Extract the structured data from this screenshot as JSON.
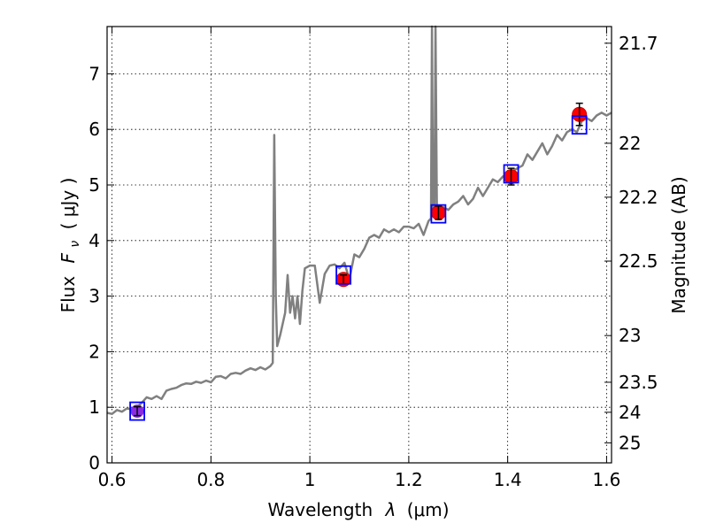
{
  "chart_data": {
    "type": "line",
    "xlabel_text": "Wavelength",
    "xlabel_symbol": "λ",
    "xlabel_unit": "(μm)",
    "ylabel_text": "Flux",
    "ylabel_symbol": "F",
    "ylabel_subscript": "ν",
    "ylabel_unit": "( μJy )",
    "y2label": "Magnitude (AB)",
    "xlim": [
      0.59,
      1.61
    ],
    "ylim": [
      0,
      7.85
    ],
    "grid": true,
    "x_ticks": [
      0.6,
      0.8,
      1.0,
      1.2,
      1.4,
      1.6
    ],
    "x_tick_labels": [
      "0.6",
      "0.8",
      "1",
      "1.2",
      "1.4",
      "1.6"
    ],
    "y_ticks": [
      0,
      1,
      2,
      3,
      4,
      5,
      6,
      7
    ],
    "y_tick_labels": [
      "0",
      "1",
      "2",
      "3",
      "4",
      "5",
      "6",
      "7"
    ],
    "mag_ticks": [
      {
        "label": "21.7",
        "flux": 7.55
      },
      {
        "label": "22",
        "flux": 5.75
      },
      {
        "label": "22.2",
        "flux": 4.78
      },
      {
        "label": "22.5",
        "flux": 3.63
      },
      {
        "label": "23",
        "flux": 2.29
      },
      {
        "label": "23.5",
        "flux": 1.45
      },
      {
        "label": "24",
        "flux": 0.91
      },
      {
        "label": "25",
        "flux": 0.36
      }
    ],
    "model_spectrum": {
      "color": "#808080",
      "points": [
        [
          0.59,
          0.9
        ],
        [
          0.6,
          0.88
        ],
        [
          0.61,
          0.95
        ],
        [
          0.62,
          0.92
        ],
        [
          0.63,
          0.98
        ],
        [
          0.64,
          0.96
        ],
        [
          0.65,
          1.0
        ],
        [
          0.66,
          1.08
        ],
        [
          0.67,
          1.18
        ],
        [
          0.68,
          1.15
        ],
        [
          0.69,
          1.2
        ],
        [
          0.7,
          1.15
        ],
        [
          0.71,
          1.3
        ],
        [
          0.72,
          1.33
        ],
        [
          0.73,
          1.35
        ],
        [
          0.74,
          1.4
        ],
        [
          0.75,
          1.43
        ],
        [
          0.76,
          1.42
        ],
        [
          0.77,
          1.46
        ],
        [
          0.78,
          1.44
        ],
        [
          0.79,
          1.48
        ],
        [
          0.8,
          1.45
        ],
        [
          0.81,
          1.55
        ],
        [
          0.82,
          1.56
        ],
        [
          0.83,
          1.52
        ],
        [
          0.84,
          1.6
        ],
        [
          0.85,
          1.62
        ],
        [
          0.86,
          1.6
        ],
        [
          0.87,
          1.66
        ],
        [
          0.88,
          1.7
        ],
        [
          0.89,
          1.67
        ],
        [
          0.9,
          1.72
        ],
        [
          0.91,
          1.68
        ],
        [
          0.92,
          1.74
        ],
        [
          0.925,
          1.8
        ],
        [
          0.928,
          5.9
        ],
        [
          0.931,
          3.0
        ],
        [
          0.934,
          2.1
        ],
        [
          0.94,
          2.3
        ],
        [
          0.945,
          2.5
        ],
        [
          0.95,
          2.7
        ],
        [
          0.955,
          3.38
        ],
        [
          0.96,
          2.7
        ],
        [
          0.965,
          3.0
        ],
        [
          0.97,
          2.6
        ],
        [
          0.975,
          3.0
        ],
        [
          0.98,
          2.5
        ],
        [
          0.985,
          3.1
        ],
        [
          0.99,
          3.5
        ],
        [
          1.0,
          3.55
        ],
        [
          1.01,
          3.55
        ],
        [
          1.02,
          2.88
        ],
        [
          1.03,
          3.4
        ],
        [
          1.04,
          3.55
        ],
        [
          1.05,
          3.57
        ],
        [
          1.06,
          3.5
        ],
        [
          1.07,
          3.6
        ],
        [
          1.08,
          3.3
        ],
        [
          1.09,
          3.75
        ],
        [
          1.1,
          3.7
        ],
        [
          1.11,
          3.85
        ],
        [
          1.12,
          4.05
        ],
        [
          1.13,
          4.1
        ],
        [
          1.14,
          4.05
        ],
        [
          1.15,
          4.2
        ],
        [
          1.16,
          4.15
        ],
        [
          1.17,
          4.2
        ],
        [
          1.18,
          4.15
        ],
        [
          1.19,
          4.25
        ],
        [
          1.2,
          4.25
        ],
        [
          1.21,
          4.22
        ],
        [
          1.22,
          4.3
        ],
        [
          1.23,
          4.1
        ],
        [
          1.24,
          4.35
        ],
        [
          1.245,
          4.4
        ],
        [
          1.247,
          7.85
        ],
        [
          1.249,
          4.45
        ],
        [
          1.252,
          4.45
        ],
        [
          1.254,
          7.85
        ],
        [
          1.257,
          4.45
        ],
        [
          1.26,
          4.5
        ],
        [
          1.27,
          4.6
        ],
        [
          1.28,
          4.55
        ],
        [
          1.29,
          4.65
        ],
        [
          1.3,
          4.7
        ],
        [
          1.31,
          4.8
        ],
        [
          1.32,
          4.65
        ],
        [
          1.33,
          4.75
        ],
        [
          1.34,
          4.95
        ],
        [
          1.35,
          4.8
        ],
        [
          1.36,
          4.95
        ],
        [
          1.37,
          5.1
        ],
        [
          1.38,
          5.05
        ],
        [
          1.39,
          5.15
        ],
        [
          1.4,
          5.2
        ],
        [
          1.41,
          5.25
        ],
        [
          1.42,
          5.3
        ],
        [
          1.43,
          5.35
        ],
        [
          1.44,
          5.55
        ],
        [
          1.45,
          5.45
        ],
        [
          1.46,
          5.6
        ],
        [
          1.47,
          5.75
        ],
        [
          1.48,
          5.55
        ],
        [
          1.49,
          5.7
        ],
        [
          1.5,
          5.9
        ],
        [
          1.51,
          5.8
        ],
        [
          1.52,
          5.95
        ],
        [
          1.53,
          6.0
        ],
        [
          1.54,
          5.95
        ],
        [
          1.55,
          6.15
        ],
        [
          1.56,
          6.2
        ],
        [
          1.57,
          6.15
        ],
        [
          1.58,
          6.25
        ],
        [
          1.59,
          6.3
        ],
        [
          1.6,
          6.25
        ],
        [
          1.61,
          6.3
        ]
      ]
    },
    "observed_points": {
      "color": "#ff0000",
      "points": [
        {
          "x": 1.068,
          "y": 3.3,
          "err": 0.08
        },
        {
          "x": 1.26,
          "y": 4.5,
          "err": 0.12
        },
        {
          "x": 1.407,
          "y": 5.15,
          "err": 0.15
        },
        {
          "x": 1.545,
          "y": 6.27,
          "err": 0.2
        }
      ]
    },
    "violet_point": {
      "color": "#8a2be2",
      "x": 0.651,
      "y": 0.93,
      "err": 0.08
    },
    "model_photometry": {
      "color": "#0000ff",
      "points": [
        {
          "x": 0.651,
          "y": 0.93
        },
        {
          "x": 1.068,
          "y": 3.38
        },
        {
          "x": 1.26,
          "y": 4.48
        },
        {
          "x": 1.407,
          "y": 5.2
        },
        {
          "x": 1.545,
          "y": 6.08
        }
      ]
    }
  }
}
